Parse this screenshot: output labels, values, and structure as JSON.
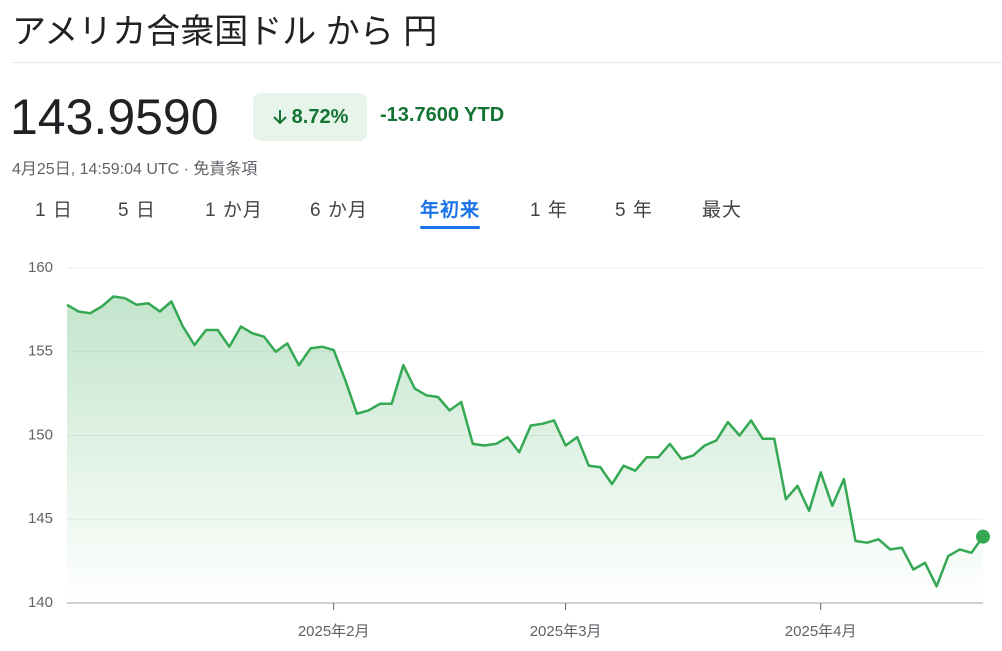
{
  "header": {
    "title": "アメリカ合衆国ドル から 円",
    "price": "143.9590",
    "change_percent": "8.72%",
    "change_ytd": "-13.7600 YTD",
    "timestamp": "4月25日, 14:59:04 UTC · 免責条項"
  },
  "tabs": {
    "items": [
      "1 日",
      "5 日",
      "1 か月",
      "6 か月",
      "年初来",
      "1 年",
      "5 年",
      "最大"
    ],
    "active": 4
  },
  "chart_data": {
    "type": "line",
    "color": "#34a853",
    "series": [
      {
        "values": [
          157.8,
          157.4,
          157.3,
          157.7,
          158.3,
          158.2,
          157.8,
          157.9,
          157.4,
          158.0,
          156.5,
          155.4,
          156.3,
          156.3,
          155.3,
          156.5,
          156.1,
          155.9,
          155.0,
          155.5,
          154.2,
          155.2,
          155.3,
          155.1,
          153.3,
          151.3,
          151.5,
          151.9,
          151.9,
          154.2,
          152.8,
          152.4,
          152.3,
          151.5,
          152.0,
          149.5,
          149.4,
          149.5,
          149.9,
          149.0,
          150.6,
          150.7,
          150.9,
          149.4,
          149.9,
          148.2,
          148.1,
          147.1,
          148.2,
          147.9,
          148.7,
          148.7,
          149.5,
          148.6,
          148.8,
          149.4,
          149.7,
          150.8,
          150.0,
          150.9,
          149.8,
          149.8,
          146.2,
          147.0,
          145.5,
          147.8,
          145.8,
          147.4,
          143.7,
          143.6,
          143.8,
          143.2,
          143.3,
          142.0,
          142.4,
          141.0,
          142.8,
          143.2,
          143.0,
          143.959
        ]
      }
    ],
    "xlim": [
      0,
      79
    ],
    "xticks": [
      {
        "value": 23,
        "label": "2025年2月"
      },
      {
        "value": 43,
        "label": "2025年3月"
      },
      {
        "value": 65,
        "label": "2025年4月"
      }
    ],
    "ylim": [
      140,
      160
    ],
    "yticks": [
      140,
      145,
      150,
      155,
      160
    ],
    "grid": true
  }
}
